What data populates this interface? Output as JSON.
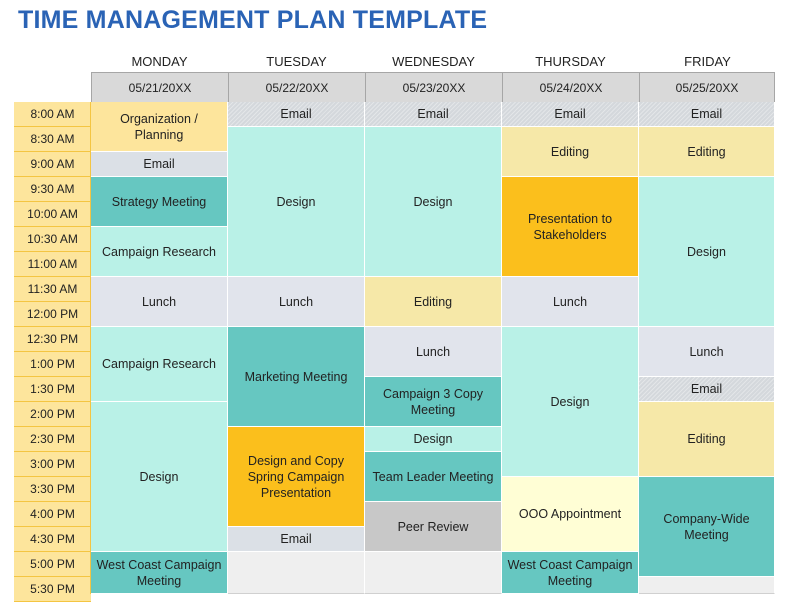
{
  "title": "TIME MANAGEMENT PLAN TEMPLATE",
  "days": [
    {
      "name": "MONDAY",
      "date": "05/21/20XX"
    },
    {
      "name": "TUESDAY",
      "date": "05/22/20XX"
    },
    {
      "name": "WEDNESDAY",
      "date": "05/23/20XX"
    },
    {
      "name": "THURSDAY",
      "date": "05/24/20XX"
    },
    {
      "name": "FRIDAY",
      "date": "05/25/20XX"
    }
  ],
  "times": [
    "8:00 AM",
    "8:30 AM",
    "9:00 AM",
    "9:30 AM",
    "10:00 AM",
    "10:30 AM",
    "11:00 AM",
    "11:30 AM",
    "12:00 PM",
    "12:30 PM",
    "1:00 PM",
    "1:30 PM",
    "2:00 PM",
    "2:30 PM",
    "3:00 PM",
    "3:30 PM",
    "4:00 PM",
    "4:30 PM",
    "5:00 PM",
    "5:30 PM"
  ],
  "colors": {
    "yellow": "#fde59c",
    "gray": "#dbe0e6",
    "teal": "#66c7c1",
    "mint": "#b9f1e7",
    "lavender": "#e1e4ec",
    "tan": "#f6e8a8",
    "orange": "#fbbf1c",
    "cream": "#fffed5",
    "dark_gray": "#c8c8c8",
    "empty": "#efefef",
    "title": "#2a63b5"
  },
  "schedule": [
    [
      {
        "label": "Organization / Planning",
        "start": 0,
        "slots": 2,
        "color": "yellow"
      },
      {
        "label": "Email",
        "start": 2,
        "slots": 1,
        "color": "gray"
      },
      {
        "label": "Strategy Meeting",
        "start": 3,
        "slots": 2,
        "color": "teal"
      },
      {
        "label": "Campaign Research",
        "start": 5,
        "slots": 2,
        "color": "mint"
      },
      {
        "label": "Lunch",
        "start": 7,
        "slots": 2,
        "color": "lavender"
      },
      {
        "label": "Campaign Research",
        "start": 9,
        "slots": 3,
        "color": "mint"
      },
      {
        "label": "Design",
        "start": 12,
        "slots": 6,
        "color": "mint"
      },
      {
        "label": "West Coast Campaign Meeting",
        "start": 18,
        "slots": 2,
        "color": "teal"
      }
    ],
    [
      {
        "label": "Email",
        "start": 0,
        "slots": 1,
        "color": "hgray"
      },
      {
        "label": "Design",
        "start": 1,
        "slots": 6,
        "color": "mint"
      },
      {
        "label": "Lunch",
        "start": 7,
        "slots": 2,
        "color": "lavender"
      },
      {
        "label": "Marketing Meeting",
        "start": 9,
        "slots": 4,
        "color": "teal"
      },
      {
        "label": "Design and Copy Spring Campaign Presentation",
        "start": 13,
        "slots": 4,
        "color": "orange"
      },
      {
        "label": "Email",
        "start": 17,
        "slots": 1,
        "color": "gray"
      },
      {
        "label": "",
        "start": 18,
        "slots": 2,
        "color": "empty"
      }
    ],
    [
      {
        "label": "Email",
        "start": 0,
        "slots": 1,
        "color": "hgray"
      },
      {
        "label": "Design",
        "start": 1,
        "slots": 6,
        "color": "mint"
      },
      {
        "label": "Editing",
        "start": 7,
        "slots": 2,
        "color": "tan"
      },
      {
        "label": "Lunch",
        "start": 9,
        "slots": 2,
        "color": "lavender"
      },
      {
        "label": "Campaign 3 Copy Meeting",
        "start": 11,
        "slots": 2,
        "color": "teal"
      },
      {
        "label": "Design",
        "start": 13,
        "slots": 1,
        "color": "mint"
      },
      {
        "label": "Team Leader Meeting",
        "start": 14,
        "slots": 2,
        "color": "teal"
      },
      {
        "label": "Peer Review",
        "start": 16,
        "slots": 2,
        "color": "dgray"
      },
      {
        "label": "",
        "start": 18,
        "slots": 2,
        "color": "empty"
      }
    ],
    [
      {
        "label": "Email",
        "start": 0,
        "slots": 1,
        "color": "hgray"
      },
      {
        "label": "Editing",
        "start": 1,
        "slots": 2,
        "color": "tan"
      },
      {
        "label": "Presentation to Stakeholders",
        "start": 3,
        "slots": 4,
        "color": "orange"
      },
      {
        "label": "Lunch",
        "start": 7,
        "slots": 2,
        "color": "lavender"
      },
      {
        "label": "Design",
        "start": 9,
        "slots": 6,
        "color": "mint"
      },
      {
        "label": "OOO Appointment",
        "start": 15,
        "slots": 3,
        "color": "cream"
      },
      {
        "label": "West Coast Campaign Meeting",
        "start": 18,
        "slots": 2,
        "color": "teal"
      }
    ],
    [
      {
        "label": "Email",
        "start": 0,
        "slots": 1,
        "color": "hgray"
      },
      {
        "label": "Editing",
        "start": 1,
        "slots": 2,
        "color": "tan"
      },
      {
        "label": "Design",
        "start": 3,
        "slots": 6,
        "color": "mint"
      },
      {
        "label": "Lunch",
        "start": 9,
        "slots": 2,
        "color": "lavender"
      },
      {
        "label": "Email",
        "start": 11,
        "slots": 1,
        "color": "hgray"
      },
      {
        "label": "Editing",
        "start": 12,
        "slots": 3,
        "color": "tan"
      },
      {
        "label": "Company-Wide Meeting",
        "start": 15,
        "slots": 4,
        "color": "teal"
      },
      {
        "label": "",
        "start": 19,
        "slots": 1,
        "color": "empty"
      }
    ]
  ]
}
